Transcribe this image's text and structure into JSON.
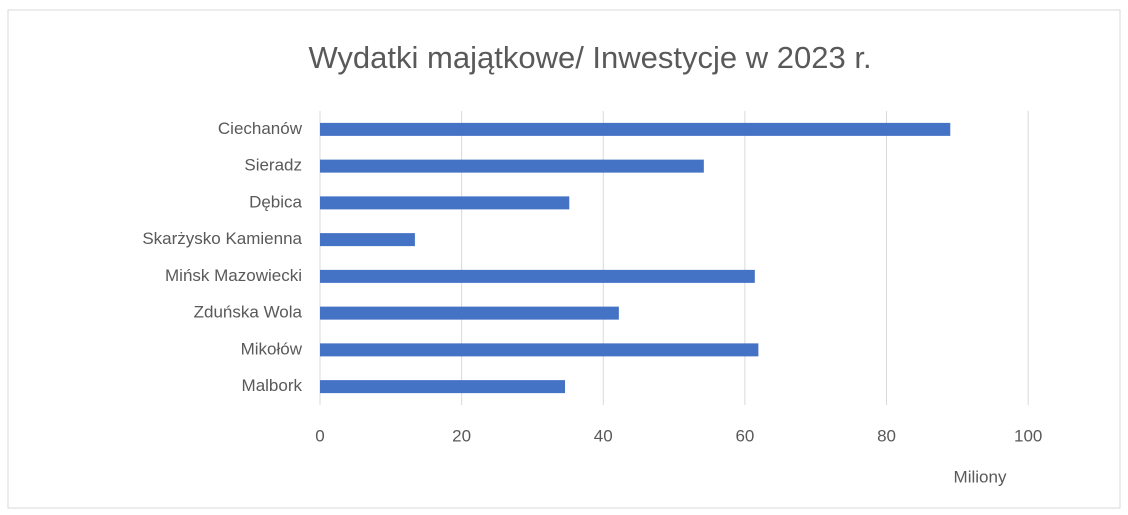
{
  "chart_data": {
    "type": "bar",
    "orientation": "horizontal",
    "title": "Wydatki majątkowe/ Inwestycje w 2023 r.",
    "x_label": "Miliony",
    "categories": [
      "Ciechanów",
      "Sieradz",
      "Dębica",
      "Skarżysko Kamienna",
      "Mińsk Mazowiecki",
      "Zduńska Wola",
      "Mikołów",
      "Malbork"
    ],
    "values": [
      89.0,
      54.2,
      35.2,
      13.4,
      61.4,
      42.2,
      61.9,
      34.6
    ],
    "color": "#4472c4",
    "xlim": [
      0,
      110
    ],
    "xticks": [
      0,
      20,
      40,
      60,
      80,
      100
    ],
    "grid": true
  }
}
